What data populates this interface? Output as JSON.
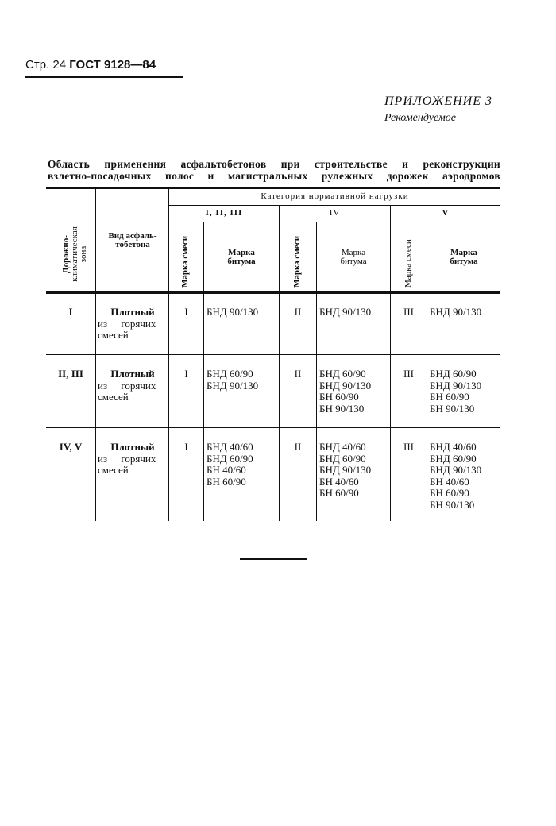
{
  "header": {
    "page": "Стр. 24",
    "standard": "ГОСТ 9128—84"
  },
  "appendix": {
    "title": "ПРИЛОЖЕНИЕ 3",
    "status": "Рекомендуемое"
  },
  "table_title": [
    "Область применения асфальтобетонов при строительстве и реконструкции",
    "взлетно-посадочных полос и магистральных рулежных дорожек аэродромов"
  ],
  "columns": {
    "zone": "Дорожно-климатическая зона",
    "zone_lines": [
      "Дорожно-",
      "климатическая",
      "зона"
    ],
    "type_lines": [
      "Вид асфаль-",
      "тобетона"
    ],
    "category": "Категория нормативной нагрузки",
    "groups": [
      "I, II, III",
      "IV",
      "V"
    ],
    "mix": "Марка смеси",
    "bitumen_lines": [
      "Марка",
      "битума"
    ]
  },
  "rows": [
    {
      "zone": "I",
      "type_bold": "Плотный",
      "type_rest": [
        "из   горячих",
        "смесей"
      ],
      "mix": [
        "I",
        "II",
        "III"
      ],
      "bitumen": [
        [
          "БНД 90/130"
        ],
        [
          "БНД 90/130"
        ],
        [
          "БНД 90/130"
        ]
      ]
    },
    {
      "zone": "II, III",
      "type_bold": "Плотный",
      "type_rest": [
        "из   горячих",
        "смесей"
      ],
      "mix": [
        "I",
        "II",
        "III"
      ],
      "bitumen": [
        [
          "БНД 60/90",
          "БНД 90/130"
        ],
        [
          "БНД 60/90",
          "БНД 90/130",
          "БН 60/90",
          "БН 90/130"
        ],
        [
          "БНД 60/90",
          "БНД 90/130",
          "БН 60/90",
          "БН 90/130"
        ]
      ]
    },
    {
      "zone": "IV, V",
      "type_bold": "Плотный",
      "type_rest": [
        "из   горячих",
        "смесей"
      ],
      "mix": [
        "I",
        "II",
        "III"
      ],
      "bitumen": [
        [
          "БНД 40/60",
          "БНД 60/90",
          "БН 40/60",
          "БН 60/90"
        ],
        [
          "БНД 40/60",
          "БНД 60/90",
          "БНД 90/130",
          "БН 40/60",
          "БН 60/90"
        ],
        [
          "БНД 40/60",
          "БНД 60/90",
          "БНД 90/130",
          "БН 40/60",
          "БН 60/90",
          "БН 90/130"
        ]
      ]
    }
  ]
}
